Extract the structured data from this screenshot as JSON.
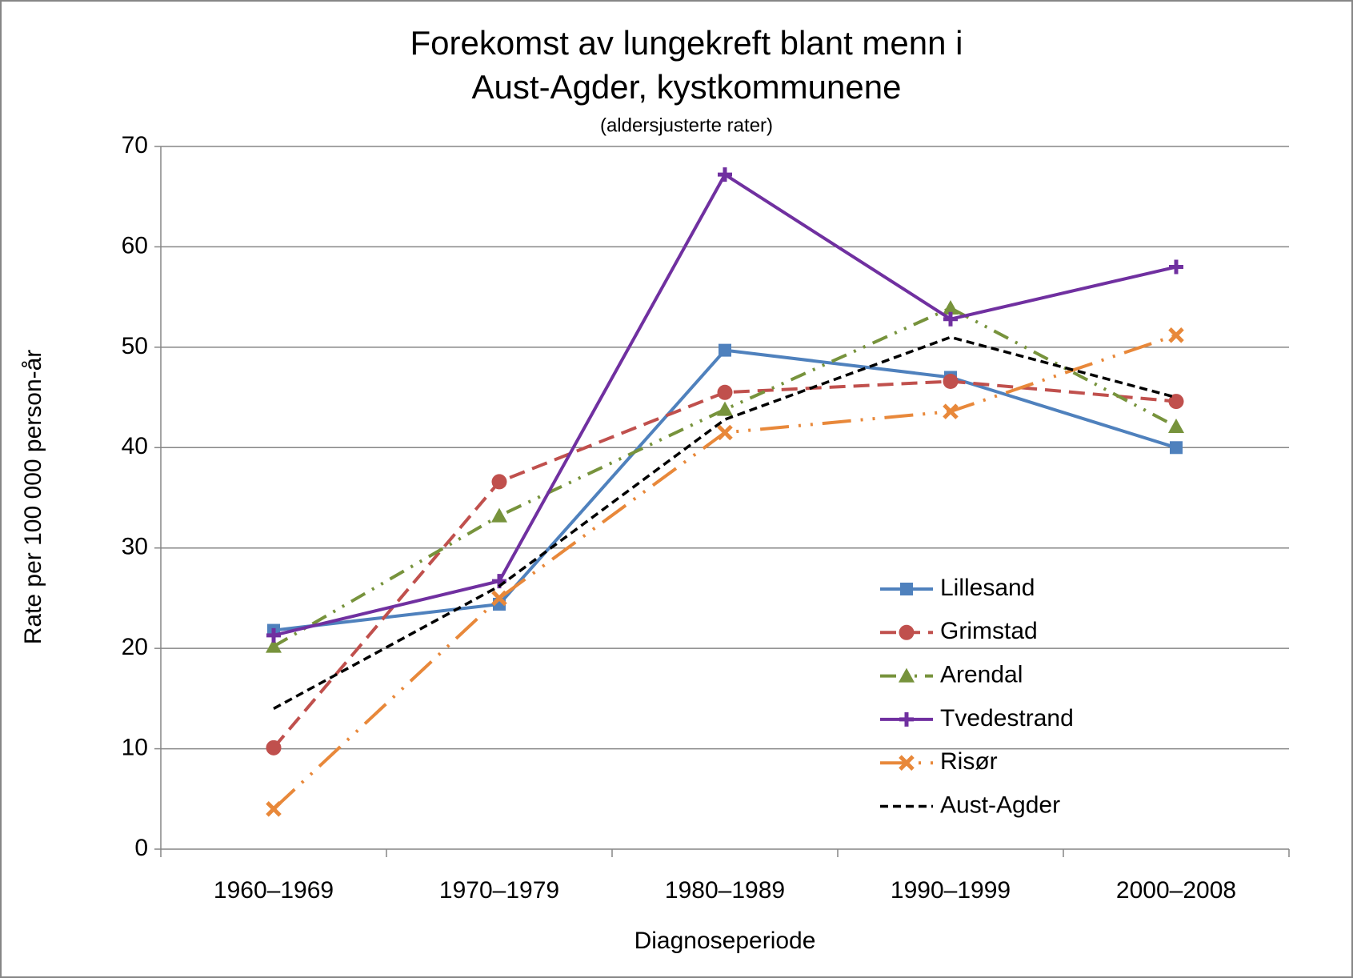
{
  "chart_data": {
    "type": "line",
    "title": [
      "Forekomst av lungekreft blant menn i",
      "Aust-Agder, kystkommunene"
    ],
    "subtitle": "(aldersjusterte rater)",
    "x_label": "Diagnoseperiode",
    "y_label": "Rate per 100 000 person-år",
    "categories": [
      "1960–1969",
      "1970–1979",
      "1980–1989",
      "1990–1999",
      "2000–2008"
    ],
    "ylim": [
      0,
      70
    ],
    "yticks": [
      0,
      10,
      20,
      30,
      40,
      50,
      60,
      70
    ],
    "grid": true,
    "legend": "right",
    "series": [
      {
        "name": "Lillesand",
        "color": "#4f81bd",
        "marker": "square",
        "values": [
          21.8,
          24.4,
          49.7,
          47.0,
          40.0
        ]
      },
      {
        "name": "Grimstad",
        "color": "#c0504d",
        "marker": "circle",
        "values": [
          10.1,
          36.6,
          45.5,
          46.6,
          44.6
        ]
      },
      {
        "name": "Arendal",
        "color": "#77933c",
        "marker": "triangle",
        "values": [
          20.2,
          33.2,
          43.8,
          53.9,
          42.1
        ]
      },
      {
        "name": "Tvedestrand",
        "color": "#7030a0",
        "marker": "plus",
        "values": [
          21.3,
          26.7,
          67.2,
          52.8,
          58.0
        ]
      },
      {
        "name": "Risør",
        "color": "#e8883a",
        "marker": "x",
        "values": [
          4.0,
          25.0,
          41.5,
          43.6,
          51.2
        ]
      },
      {
        "name": "Aust-Agder",
        "color": "#000000",
        "marker": "none",
        "values": [
          14.0,
          26.2,
          42.8,
          51.0,
          45.0
        ]
      }
    ]
  }
}
